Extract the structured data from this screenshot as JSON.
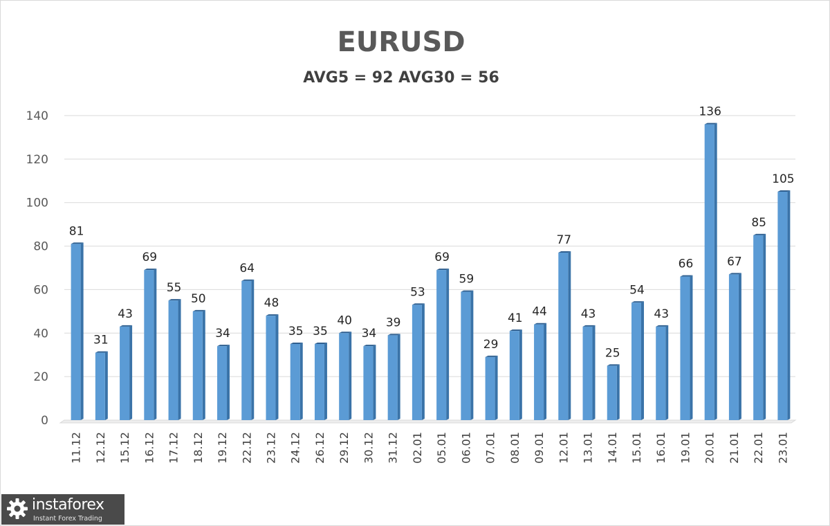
{
  "chart_data": {
    "type": "bar",
    "title": "EURUSD",
    "subtitle": "AVG5 = 92 AVG30 = 56",
    "categories": [
      "11.12",
      "12.12",
      "15.12",
      "16.12",
      "17.12",
      "18.12",
      "19.12",
      "22.12",
      "23.12",
      "24.12",
      "26.12",
      "29.12",
      "30.12",
      "31.12",
      "02.01",
      "05.01",
      "06.01",
      "07.01",
      "08.01",
      "09.01",
      "12.01",
      "13.01",
      "14.01",
      "15.01",
      "16.01",
      "19.01",
      "20.01",
      "21.01",
      "22.01",
      "23.01"
    ],
    "values": [
      81,
      31,
      43,
      69,
      55,
      50,
      34,
      64,
      48,
      35,
      35,
      40,
      34,
      39,
      53,
      69,
      59,
      29,
      41,
      44,
      77,
      43,
      25,
      54,
      43,
      66,
      136,
      67,
      85,
      105
    ],
    "ylim": [
      0,
      140
    ],
    "yticks": [
      0,
      20,
      40,
      60,
      80,
      100,
      120,
      140
    ],
    "grid": true,
    "legend": "none",
    "bar_color": "#5b9bd5",
    "bar_side_color": "#3a73a8"
  },
  "logo": {
    "name": "instaforex",
    "tagline": "Instant Forex Trading"
  }
}
